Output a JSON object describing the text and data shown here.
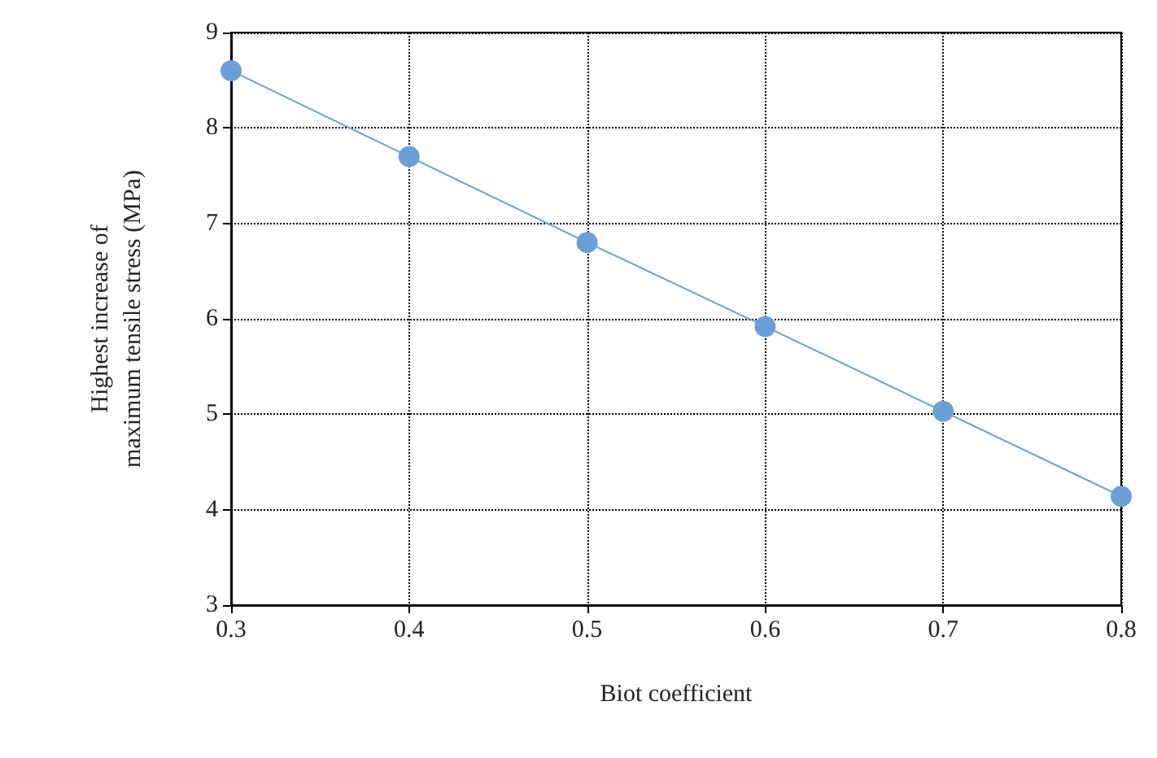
{
  "chart_data": {
    "type": "line",
    "xlabel": "Biot coefficient",
    "ylabel": "Highest increase of\nmaximum tensile stress (MPa)",
    "x": [
      0.3,
      0.4,
      0.5,
      0.6,
      0.7,
      0.8
    ],
    "series": [
      {
        "color": "#6a9fd8",
        "values": [
          8.6,
          7.7,
          6.8,
          5.92,
          5.03,
          4.14
        ]
      }
    ],
    "xlim": [
      0.3,
      0.8
    ],
    "xticks": [
      0.3,
      0.4,
      0.5,
      0.6,
      0.7,
      0.8
    ],
    "ylim": [
      3,
      9
    ],
    "yticks": [
      3,
      4,
      5,
      6,
      7,
      8,
      9
    ],
    "grid": true,
    "marker": "circle",
    "line_style": "solid"
  }
}
